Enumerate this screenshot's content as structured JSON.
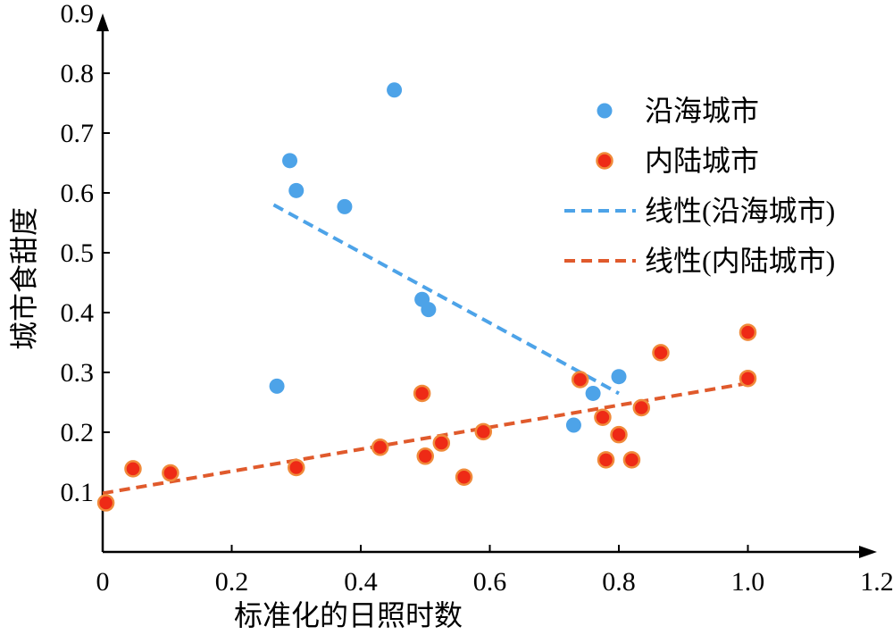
{
  "chart_data": {
    "type": "scatter",
    "xlabel": "标准化的日照时数",
    "ylabel": "城市食甜度",
    "xlim": [
      0,
      1.2
    ],
    "ylim": [
      0,
      0.9
    ],
    "xticks": [
      "0",
      "0.2",
      "0.4",
      "0.6",
      "0.8",
      "1.0",
      "1.2"
    ],
    "yticks": [
      "0.1",
      "0.2",
      "0.3",
      "0.4",
      "0.5",
      "0.6",
      "0.7",
      "0.8",
      "0.9"
    ],
    "grid": false,
    "legend_position": "top-right",
    "series": [
      {
        "name": "沿海城市",
        "kind": "scatter",
        "color": "#4da3e8",
        "points": [
          [
            0.27,
            0.277
          ],
          [
            0.29,
            0.654
          ],
          [
            0.3,
            0.604
          ],
          [
            0.375,
            0.577
          ],
          [
            0.452,
            0.772
          ],
          [
            0.495,
            0.422
          ],
          [
            0.505,
            0.405
          ],
          [
            0.73,
            0.212
          ],
          [
            0.76,
            0.265
          ],
          [
            0.8,
            0.293
          ]
        ]
      },
      {
        "name": "内陆城市",
        "kind": "scatter",
        "color": "#ee2a16",
        "edgecolor": "#f08a3a",
        "points": [
          [
            0.005,
            0.082
          ],
          [
            0.047,
            0.139
          ],
          [
            0.105,
            0.132
          ],
          [
            0.3,
            0.141
          ],
          [
            0.43,
            0.175
          ],
          [
            0.495,
            0.265
          ],
          [
            0.5,
            0.16
          ],
          [
            0.525,
            0.182
          ],
          [
            0.56,
            0.125
          ],
          [
            0.59,
            0.201
          ],
          [
            0.74,
            0.288
          ],
          [
            0.775,
            0.225
          ],
          [
            0.78,
            0.154
          ],
          [
            0.8,
            0.196
          ],
          [
            0.82,
            0.154
          ],
          [
            0.835,
            0.241
          ],
          [
            0.865,
            0.333
          ],
          [
            1.0,
            0.367
          ],
          [
            1.0,
            0.29
          ]
        ]
      },
      {
        "name": "线性(沿海城市)",
        "kind": "trendline",
        "color": "#4da3e8",
        "line": [
          [
            0.265,
            0.58
          ],
          [
            0.8,
            0.265
          ]
        ]
      },
      {
        "name": "线性(内陆城市)",
        "kind": "trendline",
        "color": "#e05a2c",
        "line": [
          [
            0.0,
            0.098
          ],
          [
            1.0,
            0.282
          ]
        ]
      }
    ]
  }
}
